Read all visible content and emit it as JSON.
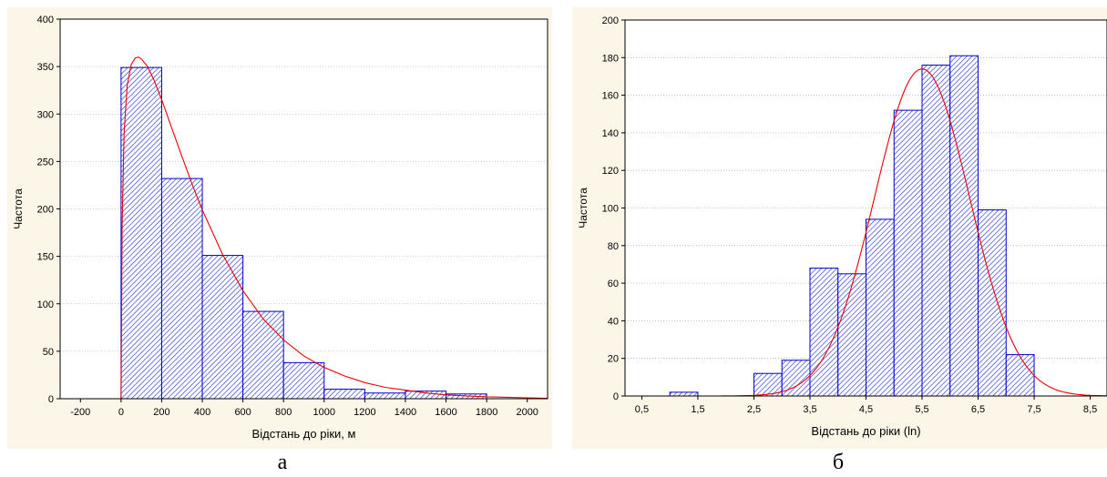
{
  "captions": {
    "a": "а",
    "b": "б"
  },
  "colors": {
    "bar_stroke": "#0000cc",
    "hatch": "#3344dd",
    "curve": "#ee0000",
    "panel_bg": "#fbf6e8",
    "grid": "#9a9a9a"
  },
  "chart_data": [
    {
      "type": "bar",
      "panel": "а",
      "xlabel": "Відстань до ріки, м",
      "ylabel": "Частота",
      "xlim": [
        -300,
        2100
      ],
      "ylim": [
        0,
        400
      ],
      "xticks": [
        -200,
        0,
        200,
        400,
        600,
        800,
        1000,
        1200,
        1400,
        1600,
        1800,
        2000
      ],
      "xtick_labels": [
        "-200",
        "0",
        "200",
        "400",
        "600",
        "800",
        "1000",
        "1200",
        "1400",
        "1600",
        "1800",
        "2000"
      ],
      "yticks": [
        0,
        50,
        100,
        150,
        200,
        250,
        300,
        350,
        400
      ],
      "ytick_labels": [
        "0",
        "50",
        "100",
        "150",
        "200",
        "250",
        "300",
        "350",
        "400"
      ],
      "grid": true,
      "bins": [
        [
          0,
          200
        ],
        [
          200,
          400
        ],
        [
          400,
          600
        ],
        [
          600,
          800
        ],
        [
          800,
          1000
        ],
        [
          1000,
          1200
        ],
        [
          1200,
          1400
        ],
        [
          1400,
          1600
        ],
        [
          1600,
          1800
        ]
      ],
      "values": [
        349,
        232,
        151,
        92,
        38,
        10,
        6,
        8,
        5
      ],
      "fit_curve": {
        "x": [
          -300,
          0,
          5,
          15,
          30,
          50,
          70,
          85,
          100,
          130,
          160,
          200,
          250,
          300,
          350,
          400,
          500,
          600,
          700,
          800,
          900,
          1000,
          1100,
          1200,
          1300,
          1400,
          1500,
          1600,
          1700,
          1800,
          1900,
          2000,
          2100
        ],
        "y": [
          0,
          0,
          180,
          280,
          330,
          352,
          359,
          360,
          358,
          350,
          337,
          315,
          285,
          255,
          226,
          199,
          152,
          114,
          84,
          62,
          45,
          33,
          24,
          17,
          12,
          9,
          6,
          4,
          3,
          2,
          1.5,
          1,
          0.5
        ]
      }
    },
    {
      "type": "bar",
      "panel": "б",
      "xlabel": "Відстань до ріки (ln)",
      "ylabel": "Частота",
      "xlim": [
        0.2,
        8.8
      ],
      "ylim": [
        0,
        200
      ],
      "xticks": [
        0.5,
        1.5,
        2.5,
        3.5,
        4.5,
        5.5,
        6.5,
        7.5,
        8.5
      ],
      "xtick_labels": [
        "0,5",
        "1,5",
        "2,5",
        "3,5",
        "4,5",
        "5,5",
        "6,5",
        "7,5",
        "8,5"
      ],
      "yticks": [
        0,
        20,
        40,
        60,
        80,
        100,
        120,
        140,
        160,
        180,
        200
      ],
      "ytick_labels": [
        "0",
        "20",
        "40",
        "60",
        "80",
        "100",
        "120",
        "140",
        "160",
        "180",
        "200"
      ],
      "grid": true,
      "bins": [
        [
          1.0,
          1.5
        ],
        [
          1.5,
          2.0
        ],
        [
          2.0,
          2.5
        ],
        [
          2.5,
          3.0
        ],
        [
          3.0,
          3.5
        ],
        [
          3.5,
          4.0
        ],
        [
          4.0,
          4.5
        ],
        [
          4.5,
          5.0
        ],
        [
          5.0,
          5.5
        ],
        [
          5.5,
          6.0
        ],
        [
          6.0,
          6.5
        ],
        [
          6.5,
          7.0
        ],
        [
          7.0,
          7.5
        ]
      ],
      "values": [
        2,
        0,
        0,
        12,
        19,
        68,
        65,
        94,
        152,
        176,
        181,
        99,
        22
      ],
      "fit_curve": {
        "kind": "normal",
        "mean": 5.5,
        "sd": 0.85,
        "peak": 174,
        "from": 1.4,
        "to": 8.8,
        "steps": 160
      }
    }
  ]
}
